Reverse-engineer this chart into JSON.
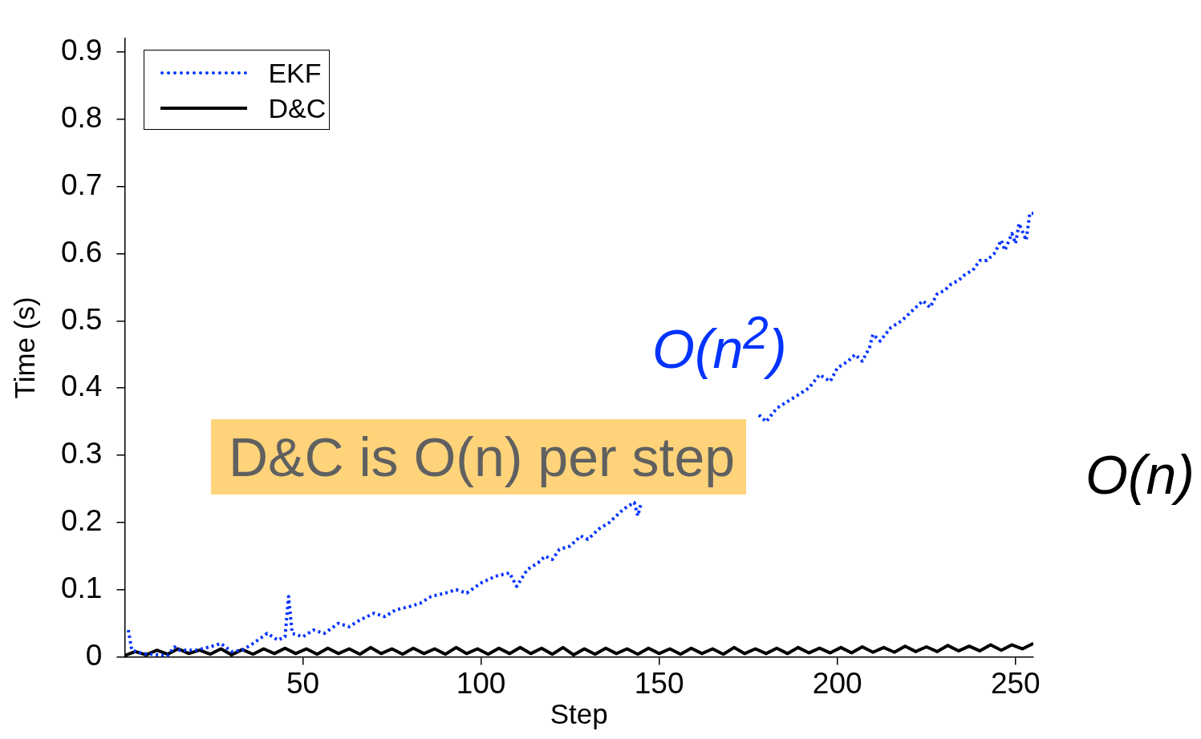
{
  "chart_data": {
    "type": "line",
    "xlabel": "Step",
    "ylabel": "Time (s)",
    "xlim": [
      0,
      255
    ],
    "xticks": [
      50,
      100,
      150,
      200,
      250
    ],
    "ylim": [
      0,
      0.92
    ],
    "yticks": [
      0,
      0.1,
      0.2,
      0.3,
      0.4,
      0.5,
      0.6,
      0.7,
      0.8,
      0.9
    ],
    "grid": false,
    "legend": "top left",
    "annotations": [
      "O(n$^{2}$)",
      "D&C is O(n) per step",
      "O(n)"
    ],
    "series": [
      {
        "name": "EKF",
        "color": "#0033ff",
        "line_style": "dotted",
        "x": [
          1,
          2,
          5,
          10,
          12,
          14,
          15,
          20,
          24,
          27,
          30,
          33,
          36,
          40,
          43,
          45,
          46,
          47,
          50,
          53,
          56,
          60,
          63,
          66,
          70,
          73,
          76,
          80,
          83,
          86,
          90,
          93,
          96,
          100,
          104,
          108,
          110,
          113,
          116,
          118,
          120,
          122,
          125,
          128,
          130,
          133,
          136,
          140,
          143,
          144,
          145,
          150,
          170,
          178,
          180,
          183,
          186,
          189,
          192,
          195,
          198,
          200,
          203,
          205,
          207,
          209,
          210,
          212,
          215,
          218,
          220,
          222,
          224,
          226,
          228,
          230,
          232,
          234,
          236,
          238,
          240,
          242,
          244,
          246,
          247,
          249,
          250,
          251,
          253,
          254,
          255
        ],
        "values": [
          0.04,
          0.01,
          0.005,
          0.003,
          0.002,
          0.015,
          0.01,
          0.01,
          0.015,
          0.02,
          0.008,
          0.01,
          0.02,
          0.035,
          0.025,
          0.03,
          0.09,
          0.035,
          0.03,
          0.04,
          0.035,
          0.05,
          0.045,
          0.055,
          0.065,
          0.06,
          0.07,
          0.075,
          0.08,
          0.09,
          0.095,
          0.1,
          0.095,
          0.11,
          0.12,
          0.125,
          0.105,
          0.13,
          0.14,
          0.15,
          0.145,
          0.16,
          0.165,
          0.18,
          0.175,
          0.19,
          0.2,
          0.22,
          0.23,
          0.21,
          0.23,
          null,
          null,
          0.36,
          0.35,
          0.37,
          0.38,
          0.39,
          0.4,
          0.42,
          0.41,
          0.43,
          0.44,
          0.45,
          0.44,
          0.46,
          0.48,
          0.47,
          0.49,
          0.5,
          0.51,
          0.52,
          0.53,
          0.52,
          0.54,
          0.545,
          0.555,
          0.56,
          0.57,
          0.575,
          0.59,
          0.59,
          0.6,
          0.62,
          0.605,
          0.63,
          0.615,
          0.645,
          0.62,
          0.66,
          0.66
        ]
      },
      {
        "name": "D&C",
        "color": "#000000",
        "line_style": "solid",
        "x": [
          0,
          3,
          6,
          9,
          12,
          15,
          18,
          21,
          24,
          27,
          30,
          33,
          36,
          39,
          42,
          45,
          48,
          51,
          54,
          57,
          60,
          63,
          66,
          69,
          72,
          75,
          78,
          81,
          84,
          87,
          90,
          93,
          96,
          99,
          102,
          105,
          108,
          111,
          114,
          117,
          120,
          123,
          126,
          129,
          132,
          135,
          138,
          141,
          144,
          147,
          150,
          153,
          156,
          159,
          162,
          165,
          168,
          171,
          174,
          177,
          180,
          183,
          186,
          189,
          192,
          195,
          198,
          201,
          204,
          207,
          210,
          213,
          216,
          219,
          222,
          225,
          228,
          231,
          234,
          237,
          240,
          243,
          246,
          249,
          252,
          255
        ],
        "values": [
          0.002,
          0.008,
          0.003,
          0.01,
          0.004,
          0.012,
          0.005,
          0.01,
          0.004,
          0.012,
          0.003,
          0.011,
          0.004,
          0.012,
          0.005,
          0.013,
          0.005,
          0.012,
          0.004,
          0.013,
          0.005,
          0.012,
          0.004,
          0.014,
          0.005,
          0.012,
          0.004,
          0.013,
          0.005,
          0.012,
          0.004,
          0.014,
          0.005,
          0.012,
          0.004,
          0.013,
          0.005,
          0.014,
          0.005,
          0.013,
          0.004,
          0.014,
          0.003,
          0.012,
          0.004,
          0.013,
          0.005,
          0.012,
          0.004,
          0.013,
          0.005,
          0.012,
          0.004,
          0.013,
          0.005,
          0.012,
          0.004,
          0.014,
          0.005,
          0.012,
          0.005,
          0.013,
          0.005,
          0.014,
          0.006,
          0.013,
          0.006,
          0.014,
          0.006,
          0.015,
          0.007,
          0.014,
          0.007,
          0.016,
          0.008,
          0.015,
          0.008,
          0.017,
          0.009,
          0.016,
          0.009,
          0.018,
          0.01,
          0.018,
          0.012,
          0.02
        ]
      }
    ]
  }
}
